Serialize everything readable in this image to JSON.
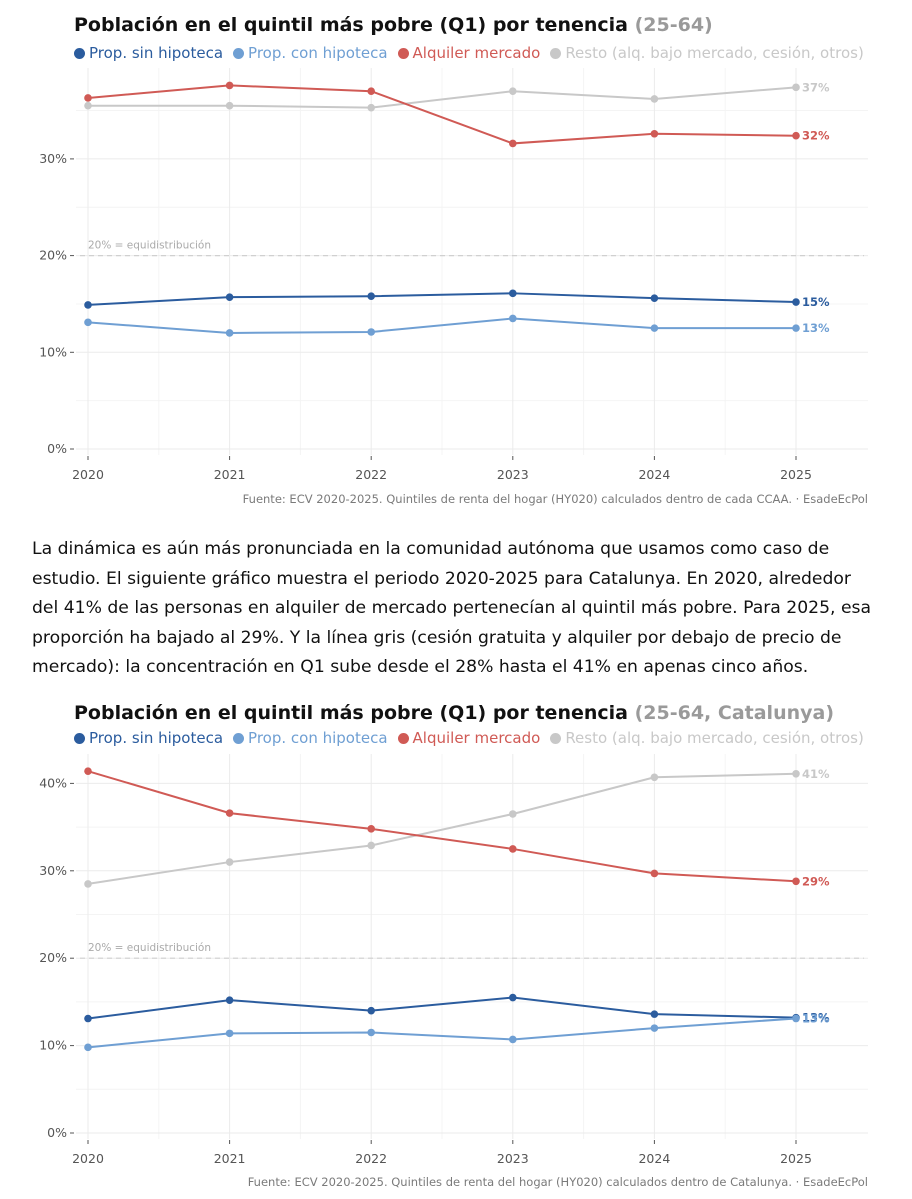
{
  "charts": [
    {
      "title": "Población en el quintil más pobre (Q1) por tenencia",
      "subtitle": "(25-64)",
      "source": "Fuente: ECV 2020-2025. Quintiles de renta del hogar (HY020) calculados dentro de cada CCAA. · EsadeEcPol"
    },
    {
      "title": "Población en el quintil más pobre (Q1) por tenencia",
      "subtitle": "(25-64, Catalunya)",
      "source": "Fuente: ECV 2020-2025. Quintiles de renta del hogar (HY020) calculados dentro de Catalunya. · EsadeEcPol"
    }
  ],
  "legend": [
    {
      "label": "Prop. sin hipoteca",
      "color": "#2b5c9e"
    },
    {
      "label": "Prop. con hipoteca",
      "color": "#6f9fd3"
    },
    {
      "label": "Alquiler mercado",
      "color": "#d05a55"
    },
    {
      "label": "Resto (alq. bajo mercado, cesión, otros)",
      "color": "#c8c8c8"
    }
  ],
  "paragraph": "La dinámica es aún más pronunciada en la comunidad autónoma que usamos como caso de estudio. El siguiente gráfico muestra el periodo 2020-2025 para Catalunya. En 2020, alrededor del 41% de las personas en alquiler de mercado pertenecían al quintil más pobre. Para 2025, esa proporción ha bajado al 29%. Y la línea gris (cesión gratuita y alquiler por debajo de precio de mercado): la concentración en Q1 sube desde el 28% hasta el 41% en apenas cinco años.",
  "chart_data": [
    {
      "type": "line",
      "title": "Población en el quintil más pobre (Q1) por tenencia (25-64)",
      "x": [
        2020,
        2021,
        2022,
        2023,
        2024,
        2025
      ],
      "x_tick_labels": [
        "2020",
        "2021",
        "2022",
        "2023",
        "2024",
        "2025"
      ],
      "y_ticks": [
        0,
        10,
        20,
        30
      ],
      "y_tick_labels": [
        "0%",
        "10%",
        "20%",
        "30%"
      ],
      "ylim": [
        0,
        39
      ],
      "reference_line": {
        "value": 20,
        "label": "20% = equidistribución"
      },
      "series": [
        {
          "name": "Resto (alq. bajo mercado, cesión, otros)",
          "color": "#c8c8c8",
          "values": [
            35.5,
            35.5,
            35.3,
            37.0,
            36.2,
            37.4
          ],
          "end_label": "37%"
        },
        {
          "name": "Alquiler mercado",
          "color": "#d05a55",
          "values": [
            36.3,
            37.6,
            37.0,
            31.6,
            32.6,
            32.4
          ],
          "end_label": "32%"
        },
        {
          "name": "Prop. sin hipoteca",
          "color": "#2b5c9e",
          "values": [
            14.9,
            15.7,
            15.8,
            16.1,
            15.6,
            15.2
          ],
          "end_label": "15%"
        },
        {
          "name": "Prop. con hipoteca",
          "color": "#6f9fd3",
          "values": [
            13.1,
            12.0,
            12.1,
            13.5,
            12.5,
            12.5
          ],
          "end_label": "13%"
        }
      ]
    },
    {
      "type": "line",
      "title": "Población en el quintil más pobre (Q1) por tenencia (25-64, Catalunya)",
      "x": [
        2020,
        2021,
        2022,
        2023,
        2024,
        2025
      ],
      "x_tick_labels": [
        "2020",
        "2021",
        "2022",
        "2023",
        "2024",
        "2025"
      ],
      "y_ticks": [
        0,
        10,
        20,
        30,
        40
      ],
      "y_tick_labels": [
        "0%",
        "10%",
        "20%",
        "30%",
        "40%"
      ],
      "ylim": [
        0,
        43
      ],
      "reference_line": {
        "value": 20,
        "label": "20% = equidistribución"
      },
      "series": [
        {
          "name": "Resto (alq. bajo mercado, cesión, otros)",
          "color": "#c8c8c8",
          "values": [
            28.5,
            31.0,
            32.9,
            36.5,
            40.7,
            41.1
          ],
          "end_label": "41%"
        },
        {
          "name": "Alquiler mercado",
          "color": "#d05a55",
          "values": [
            41.4,
            36.6,
            34.8,
            32.5,
            29.7,
            28.8
          ],
          "end_label": "29%"
        },
        {
          "name": "Prop. sin hipoteca",
          "color": "#2b5c9e",
          "values": [
            13.1,
            15.2,
            14.0,
            15.5,
            13.6,
            13.2
          ],
          "end_label": "13%"
        },
        {
          "name": "Prop. con hipoteca",
          "color": "#6f9fd3",
          "values": [
            9.8,
            11.4,
            11.5,
            10.7,
            12.0,
            13.1
          ],
          "end_label": "13%"
        }
      ]
    }
  ]
}
